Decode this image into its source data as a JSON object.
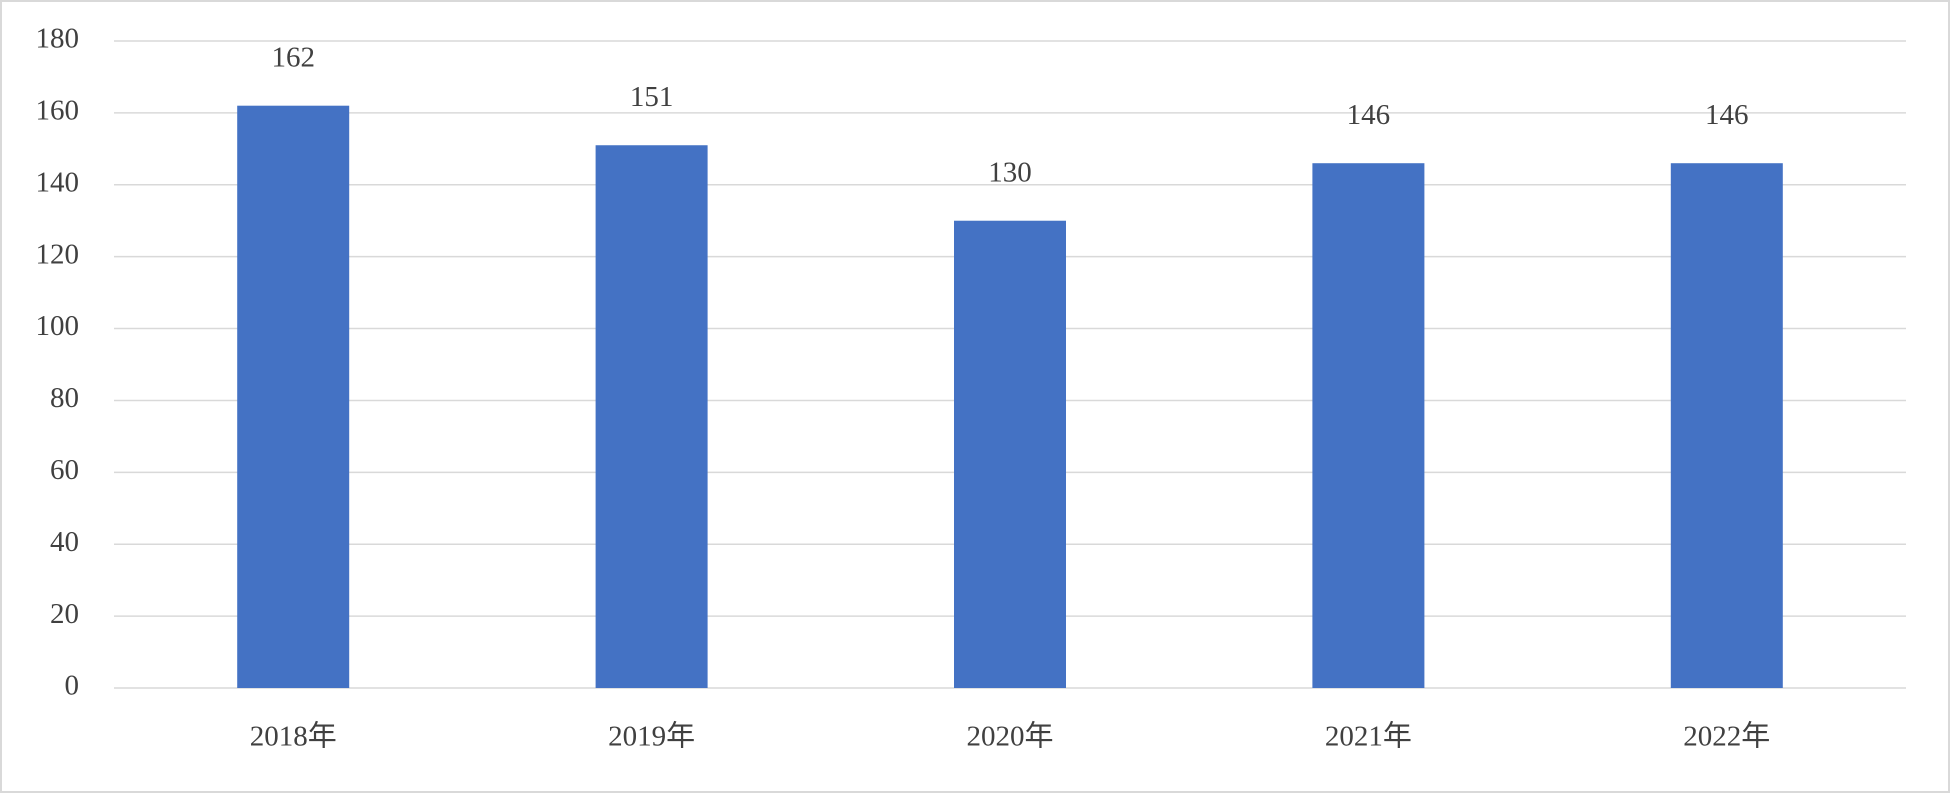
{
  "chart_data": {
    "type": "bar",
    "categories": [
      "2018年",
      "2019年",
      "2020年",
      "2021年",
      "2022年"
    ],
    "values": [
      162,
      151,
      130,
      146,
      146
    ],
    "color": "#4472c4",
    "ylim": [
      0,
      180
    ],
    "yticks": [
      0,
      20,
      40,
      60,
      80,
      100,
      120,
      140,
      160,
      180
    ],
    "grid": true,
    "data_labels": true
  }
}
